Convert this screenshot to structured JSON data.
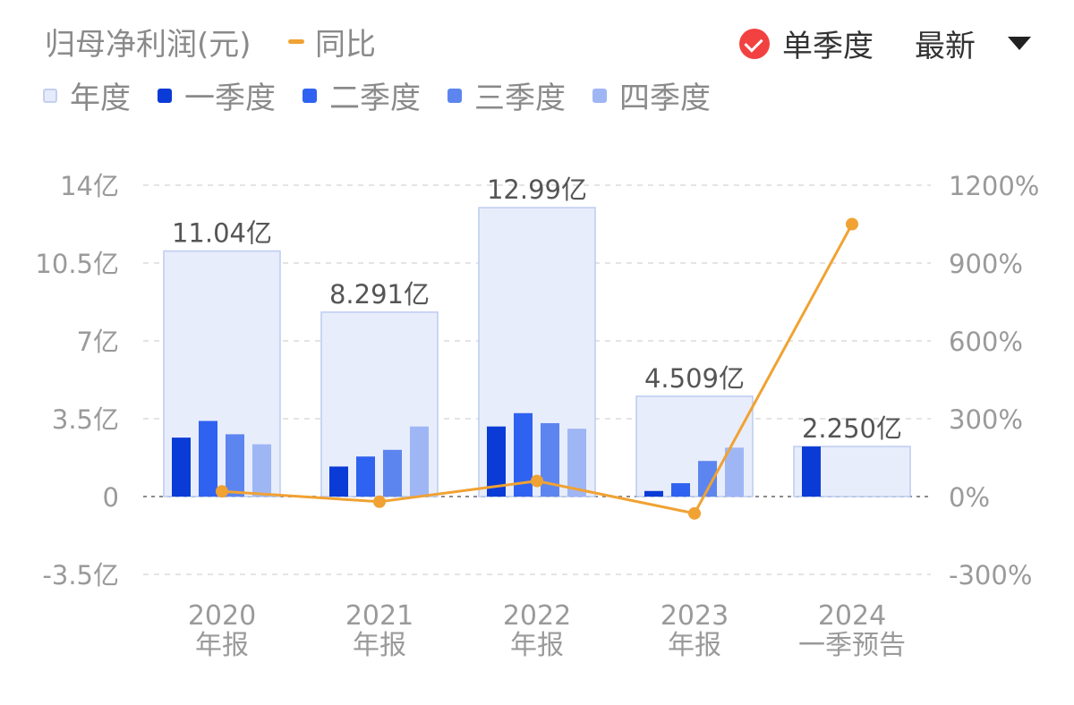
{
  "header": {
    "title": "归母净利润(元)",
    "yoy_label": "同比",
    "single_quarter_label": "单季度",
    "sort_label": "最新"
  },
  "legend": [
    {
      "label": "年度",
      "color": "#e6ebfb",
      "border": "#c5cff0"
    },
    {
      "label": "一季度",
      "color": "#0a3bd6"
    },
    {
      "label": "二季度",
      "color": "#2f62f0"
    },
    {
      "label": "三季度",
      "color": "#5d85ef"
    },
    {
      "label": "四季度",
      "color": "#9fb6f5"
    }
  ],
  "colors": {
    "annual_fill": "#e8edfb",
    "annual_stroke": "#bccbf0",
    "line": "#f0a233",
    "grid": "#dcdcdc",
    "axis_text": "#9a9a9a"
  },
  "chart_data": {
    "type": "bar",
    "categories": [
      "2020\n年报",
      "2021\n年报",
      "2022\n年报",
      "2023\n年报",
      "2024\n一季预告"
    ],
    "annual": {
      "name": "年度",
      "values": [
        11.04,
        8.291,
        12.99,
        4.509,
        2.25
      ],
      "labels": [
        "11.04亿",
        "8.291亿",
        "12.99亿",
        "4.509亿",
        "2.250亿"
      ]
    },
    "series": [
      {
        "name": "一季度",
        "values": [
          2.65,
          1.35,
          3.15,
          0.25,
          2.25
        ]
      },
      {
        "name": "二季度",
        "values": [
          3.4,
          1.8,
          3.75,
          0.6,
          null
        ]
      },
      {
        "name": "三季度",
        "values": [
          2.8,
          2.1,
          3.3,
          1.6,
          null
        ]
      },
      {
        "name": "四季度",
        "values": [
          2.35,
          3.15,
          3.05,
          2.2,
          null
        ]
      }
    ],
    "yoy": {
      "name": "同比",
      "values": [
        20,
        -20,
        60,
        -65,
        1050
      ]
    },
    "left_axis": {
      "ticks": [
        -3.5,
        0,
        3.5,
        7,
        10.5,
        14
      ],
      "tick_labels": [
        "-3.5亿",
        "0",
        "3.5亿",
        "7亿",
        "10.5亿",
        "14亿"
      ],
      "range": [
        -3.5,
        14
      ]
    },
    "right_axis": {
      "ticks": [
        -300,
        0,
        300,
        600,
        900,
        1200
      ],
      "tick_labels": [
        "-300%",
        "0%",
        "300%",
        "600%",
        "900%",
        "1200%"
      ],
      "range": [
        -300,
        1200
      ]
    },
    "grid": true
  }
}
